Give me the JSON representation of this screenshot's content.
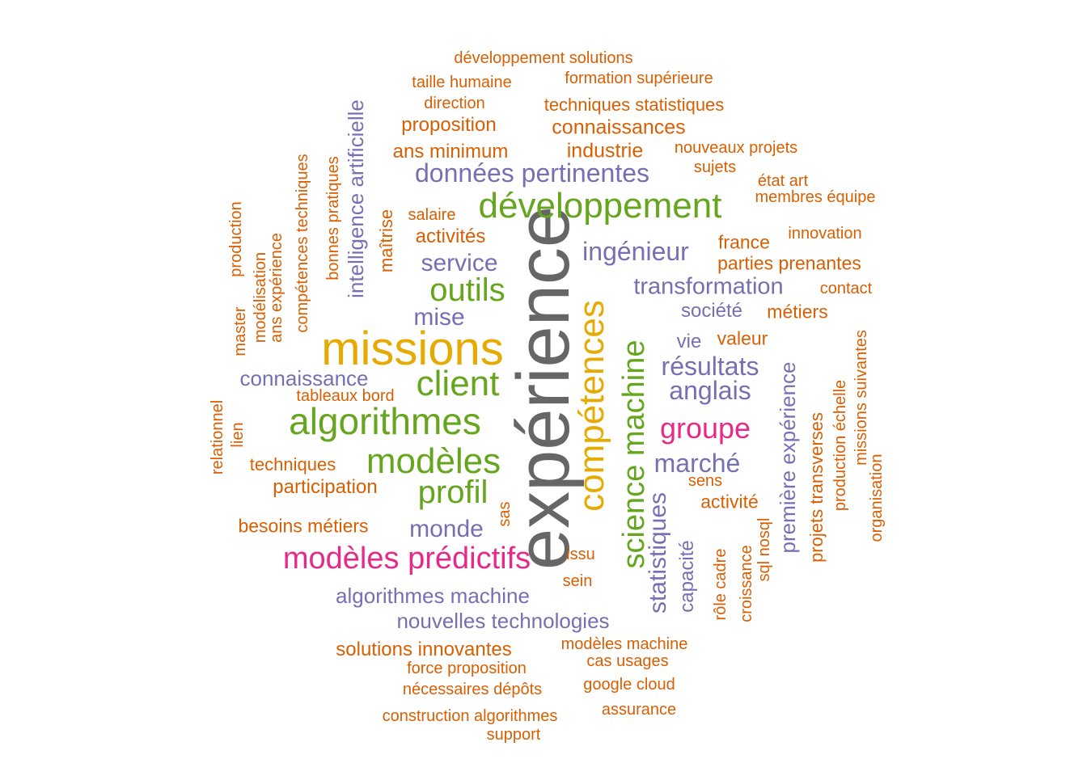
{
  "palette": {
    "orange": "#d95f02",
    "purple": "#7570b3",
    "green": "#66a61e",
    "gold": "#e6ab02",
    "pink": "#e7298a",
    "grey": "#666666"
  },
  "words": [
    {
      "text": "expérience",
      "color": "grey",
      "rotated": true
    },
    {
      "text": "missions",
      "color": "gold",
      "rotated": false
    },
    {
      "text": "compétences",
      "color": "gold",
      "rotated": true
    },
    {
      "text": "développement",
      "color": "green",
      "rotated": false
    },
    {
      "text": "algorithmes",
      "color": "green",
      "rotated": false
    },
    {
      "text": "science machine",
      "color": "green",
      "rotated": true
    },
    {
      "text": "modèles prédictifs",
      "color": "pink",
      "rotated": false
    },
    {
      "text": "client",
      "color": "green",
      "rotated": false
    },
    {
      "text": "modèles",
      "color": "green",
      "rotated": false
    },
    {
      "text": "outils",
      "color": "green",
      "rotated": false
    },
    {
      "text": "profil",
      "color": "green",
      "rotated": false
    },
    {
      "text": "groupe",
      "color": "pink",
      "rotated": false
    },
    {
      "text": "données pertinentes",
      "color": "purple",
      "rotated": false
    },
    {
      "text": "statistiques",
      "color": "purple",
      "rotated": true
    },
    {
      "text": "première expérience",
      "color": "purple",
      "rotated": true
    },
    {
      "text": "marché",
      "color": "purple",
      "rotated": false
    },
    {
      "text": "résultats",
      "color": "purple",
      "rotated": false
    },
    {
      "text": "anglais",
      "color": "purple",
      "rotated": false
    },
    {
      "text": "ingénieur",
      "color": "purple",
      "rotated": false
    },
    {
      "text": "transformation",
      "color": "purple",
      "rotated": false
    },
    {
      "text": "service",
      "color": "purple",
      "rotated": false
    },
    {
      "text": "mise",
      "color": "purple",
      "rotated": false
    },
    {
      "text": "monde",
      "color": "purple",
      "rotated": false
    },
    {
      "text": "connaissance",
      "color": "purple",
      "rotated": false
    },
    {
      "text": "intelligence artificielle",
      "color": "purple",
      "rotated": true
    },
    {
      "text": "algorithmes machine",
      "color": "purple",
      "rotated": false
    },
    {
      "text": "nouvelles technologies",
      "color": "purple",
      "rotated": false
    },
    {
      "text": "capacité",
      "color": "purple",
      "rotated": true
    },
    {
      "text": "société",
      "color": "purple",
      "rotated": false
    },
    {
      "text": "vie",
      "color": "purple",
      "rotated": false
    },
    {
      "text": "projets transverses",
      "color": "orange",
      "rotated": true
    },
    {
      "text": "connaissances",
      "color": "orange",
      "rotated": false
    },
    {
      "text": "industrie",
      "color": "orange",
      "rotated": false
    },
    {
      "text": "proposition",
      "color": "orange",
      "rotated": false
    },
    {
      "text": "ans minimum",
      "color": "orange",
      "rotated": false
    },
    {
      "text": "activités",
      "color": "orange",
      "rotated": false
    },
    {
      "text": "techniques statistiques",
      "color": "orange",
      "rotated": false
    },
    {
      "text": "participation",
      "color": "orange",
      "rotated": false
    },
    {
      "text": "besoins métiers",
      "color": "orange",
      "rotated": false
    },
    {
      "text": "techniques",
      "color": "orange",
      "rotated": false
    },
    {
      "text": "activité",
      "color": "orange",
      "rotated": false
    },
    {
      "text": "solutions innovantes",
      "color": "orange",
      "rotated": false
    },
    {
      "text": "parties prenantes",
      "color": "orange",
      "rotated": false
    },
    {
      "text": "france",
      "color": "orange",
      "rotated": false
    },
    {
      "text": "métiers",
      "color": "orange",
      "rotated": false
    },
    {
      "text": "valeur",
      "color": "orange",
      "rotated": false
    },
    {
      "text": "maîtrise",
      "color": "orange",
      "rotated": true
    },
    {
      "text": "bonnes pratiques",
      "color": "orange",
      "rotated": true
    },
    {
      "text": "compétences techniques",
      "color": "orange",
      "rotated": true
    },
    {
      "text": "ans expérience",
      "color": "orange",
      "rotated": true
    },
    {
      "text": "développement solutions",
      "color": "orange",
      "rotated": false
    },
    {
      "text": "taille humaine",
      "color": "orange",
      "rotated": false
    },
    {
      "text": "formation supérieure",
      "color": "orange",
      "rotated": false
    },
    {
      "text": "direction",
      "color": "orange",
      "rotated": false
    },
    {
      "text": "nouveaux projets",
      "color": "orange",
      "rotated": false
    },
    {
      "text": "sujets",
      "color": "orange",
      "rotated": false
    },
    {
      "text": "état art",
      "color": "orange",
      "rotated": false
    },
    {
      "text": "membres équipe",
      "color": "orange",
      "rotated": false
    },
    {
      "text": "salaire",
      "color": "orange",
      "rotated": false
    },
    {
      "text": "innovation",
      "color": "orange",
      "rotated": false
    },
    {
      "text": "contact",
      "color": "orange",
      "rotated": false
    },
    {
      "text": "tableaux bord",
      "color": "orange",
      "rotated": false
    },
    {
      "text": "sens",
      "color": "orange",
      "rotated": false
    },
    {
      "text": "issu",
      "color": "orange",
      "rotated": false
    },
    {
      "text": "sein",
      "color": "orange",
      "rotated": false
    },
    {
      "text": "sas",
      "color": "orange",
      "rotated": true
    },
    {
      "text": "modèles machine",
      "color": "orange",
      "rotated": false
    },
    {
      "text": "cas usages",
      "color": "orange",
      "rotated": false
    },
    {
      "text": "force proposition",
      "color": "orange",
      "rotated": false
    },
    {
      "text": "nécessaires dépôts",
      "color": "orange",
      "rotated": false
    },
    {
      "text": "google cloud",
      "color": "orange",
      "rotated": false
    },
    {
      "text": "construction algorithmes",
      "color": "orange",
      "rotated": false
    },
    {
      "text": "assurance",
      "color": "orange",
      "rotated": false
    },
    {
      "text": "support",
      "color": "orange",
      "rotated": false
    },
    {
      "text": "rôle cadre",
      "color": "orange",
      "rotated": true
    },
    {
      "text": "croissance",
      "color": "orange",
      "rotated": true
    },
    {
      "text": "sql nosql",
      "color": "orange",
      "rotated": true
    },
    {
      "text": "production échelle",
      "color": "orange",
      "rotated": true
    },
    {
      "text": "missions suivantes",
      "color": "orange",
      "rotated": true
    },
    {
      "text": "organisation",
      "color": "orange",
      "rotated": true
    },
    {
      "text": "master",
      "color": "orange",
      "rotated": true
    },
    {
      "text": "production",
      "color": "orange",
      "rotated": true
    },
    {
      "text": "modélisation",
      "color": "orange",
      "rotated": true
    },
    {
      "text": "relationnel",
      "color": "orange",
      "rotated": true
    },
    {
      "text": "lien",
      "color": "orange",
      "rotated": true
    }
  ]
}
